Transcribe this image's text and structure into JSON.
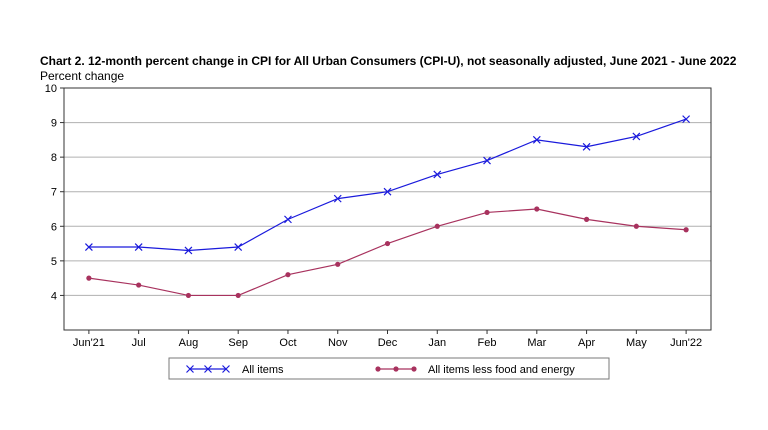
{
  "chart_data": {
    "type": "line",
    "title": "Chart 2. 12-month percent change in CPI for All Urban Consumers (CPI-U), not seasonally adjusted, June 2021 - June 2022",
    "ylabel": "Percent change",
    "categories": [
      "Jun'21",
      "Jul",
      "Aug",
      "Sep",
      "Oct",
      "Nov",
      "Dec",
      "Jan",
      "Feb",
      "Mar",
      "Apr",
      "May",
      "Jun'22"
    ],
    "ylim": [
      3,
      10
    ],
    "yticks": [
      4,
      5,
      6,
      7,
      8,
      9,
      10
    ],
    "grid": true,
    "legend_position": "bottom",
    "series": [
      {
        "name": "All items",
        "color": "#1a1adc",
        "marker": "x",
        "values": [
          5.4,
          5.4,
          5.3,
          5.4,
          6.2,
          6.8,
          7.0,
          7.5,
          7.9,
          8.5,
          8.3,
          8.6,
          9.1
        ]
      },
      {
        "name": "All items less food and energy",
        "color": "#a8325e",
        "marker": "dot",
        "values": [
          4.5,
          4.3,
          4.0,
          4.0,
          4.6,
          4.9,
          5.5,
          6.0,
          6.4,
          6.5,
          6.2,
          6.0,
          5.9
        ]
      }
    ]
  }
}
